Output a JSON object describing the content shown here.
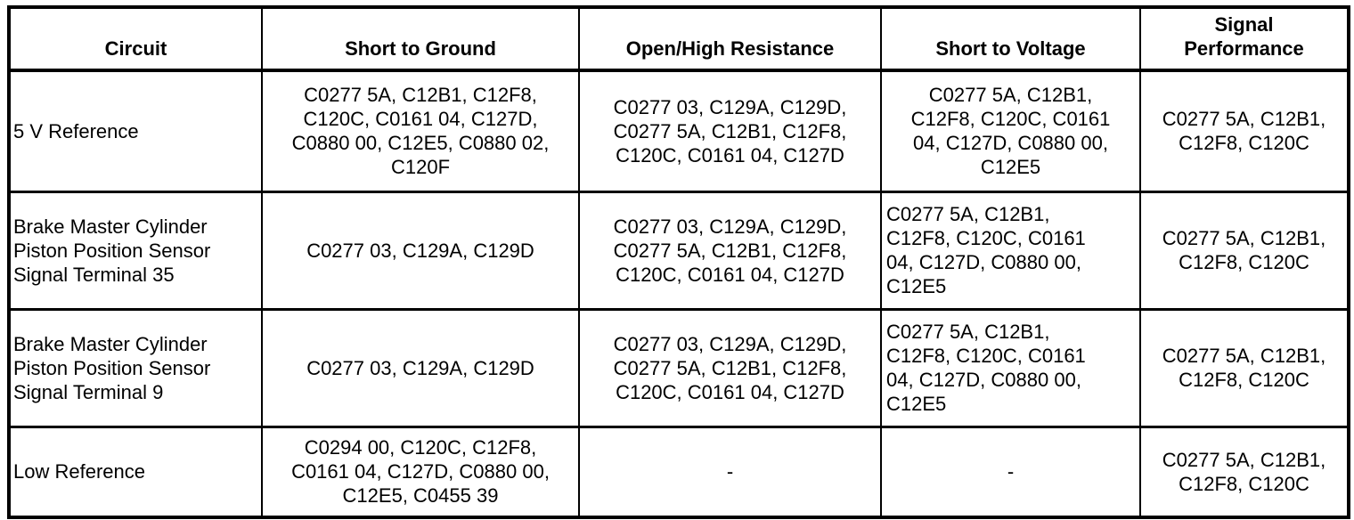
{
  "table": {
    "columns": [
      {
        "label": "Circuit"
      },
      {
        "label": "Short to Ground"
      },
      {
        "label": "Open/High Resistance"
      },
      {
        "label": "Short to Voltage"
      },
      {
        "label": "Signal\nPerformance"
      }
    ],
    "rows": [
      {
        "cells": [
          "5 V Reference",
          "C0277 5A, C12B1, C12F8,\nC120C, C0161 04, C127D,\nC0880 00, C12E5, C0880 02,\nC120F",
          "C0277 03, C129A, C129D,\nC0277 5A, C12B1, C12F8,\nC120C, C0161 04, C127D",
          "C0277 5A, C12B1,\nC12F8, C120C, C0161\n04, C127D, C0880 00,\nC12E5",
          "C0277 5A, C12B1,\nC12F8, C120C"
        ]
      },
      {
        "cells": [
          "Brake Master Cylinder\nPiston Position Sensor\nSignal Terminal 35",
          "C0277 03, C129A, C129D",
          "C0277 03, C129A, C129D,\nC0277 5A, C12B1, C12F8,\nC120C, C0161 04, C127D",
          "C0277 5A, C12B1,\nC12F8, C120C, C0161\n04, C127D, C0880 00,\nC12E5",
          "C0277 5A, C12B1,\nC12F8, C120C"
        ]
      },
      {
        "cells": [
          "Brake Master Cylinder\nPiston Position Sensor\nSignal Terminal 9",
          "C0277 03, C129A, C129D",
          "C0277 03, C129A, C129D,\nC0277 5A, C12B1, C12F8,\nC120C, C0161 04, C127D",
          "C0277 5A, C12B1,\nC12F8, C120C, C0161\n04, C127D, C0880 00,\nC12E5",
          "C0277 5A, C12B1,\nC12F8, C120C"
        ]
      },
      {
        "cells": [
          "Low Reference",
          "C0294 00, C120C, C12F8,\nC0161 04, C127D, C0880 00,\nC12E5, C0455 39",
          "-",
          "-",
          "C0277 5A, C12B1,\nC12F8, C120C"
        ]
      }
    ]
  }
}
